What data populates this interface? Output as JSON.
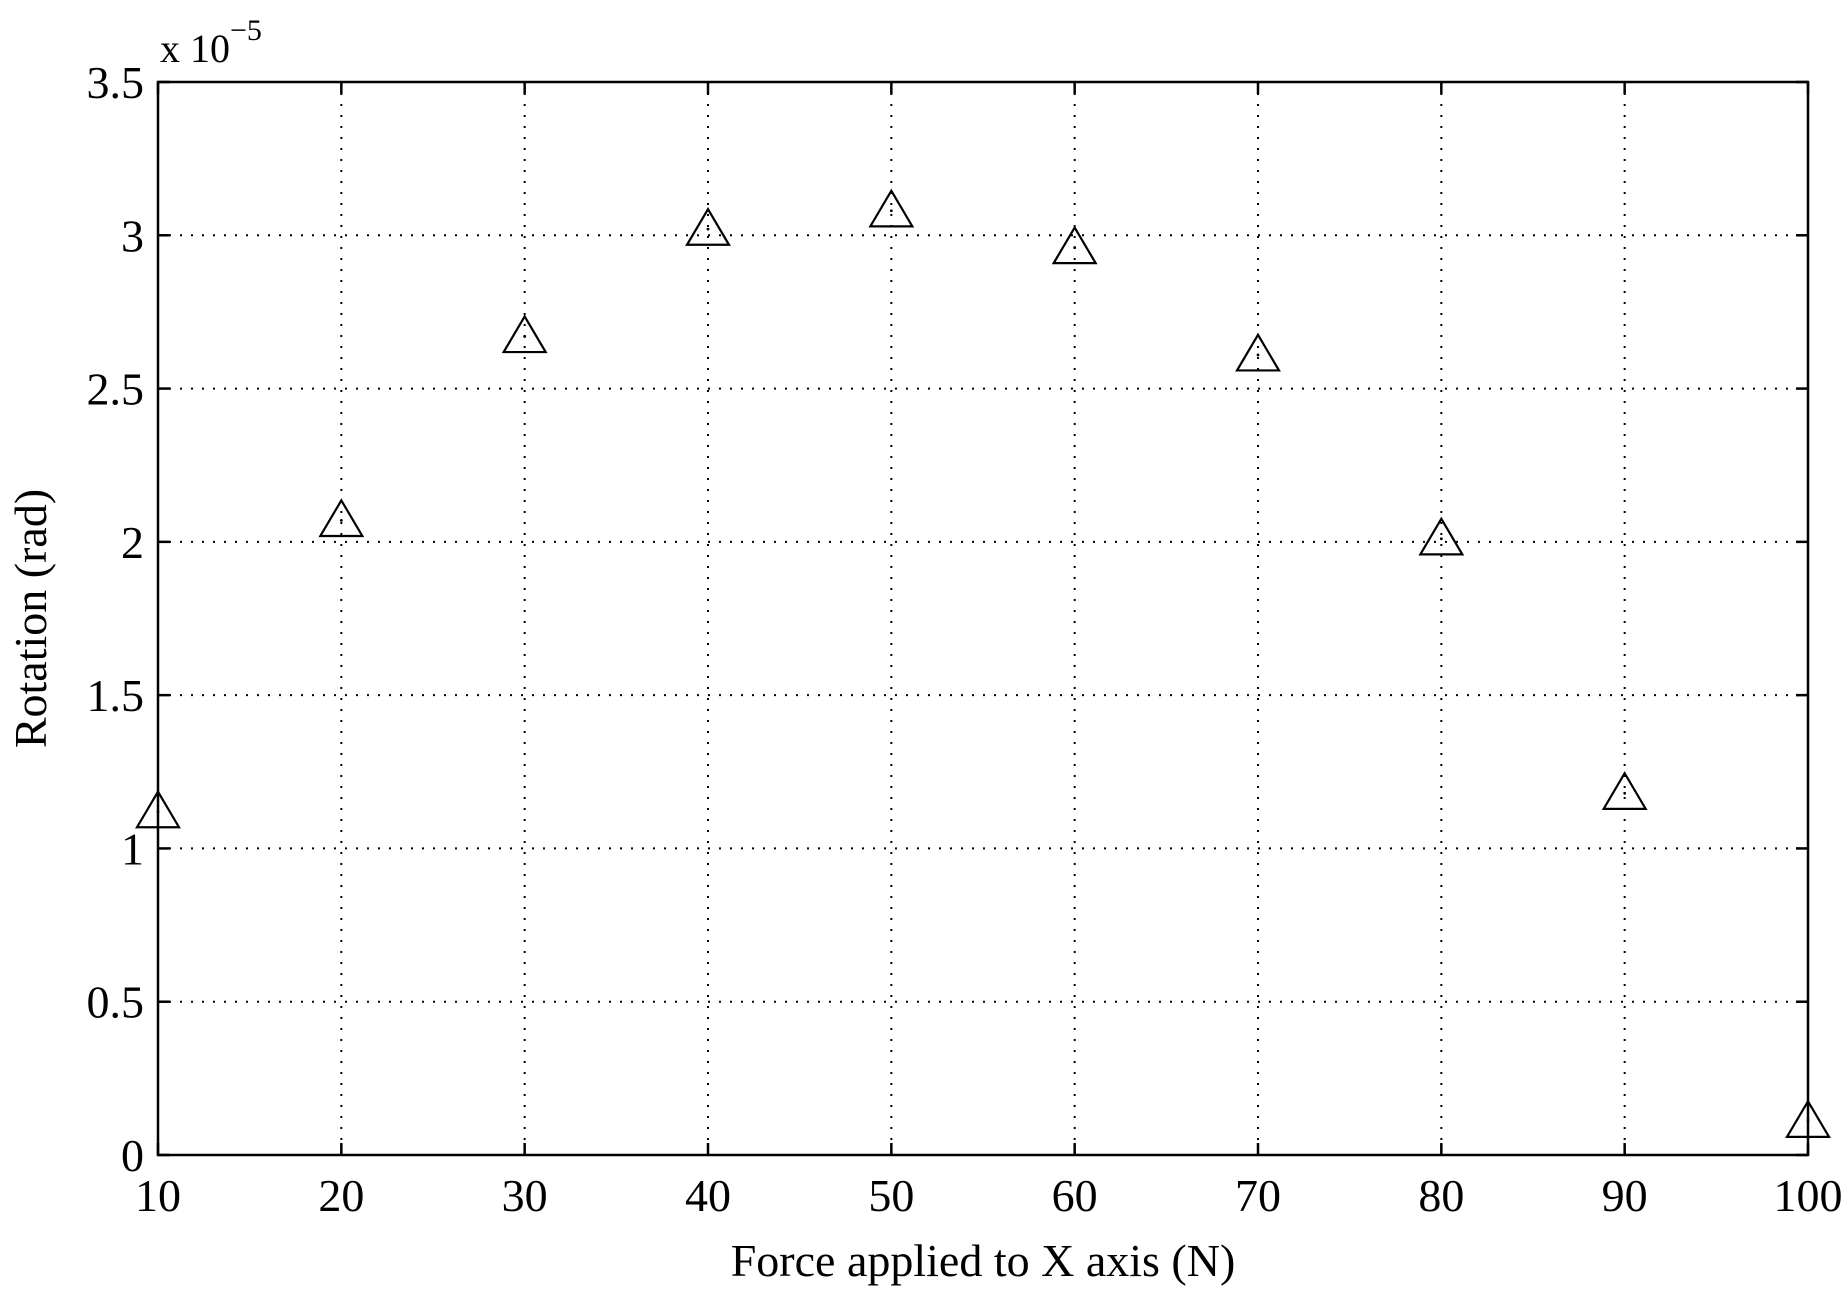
{
  "chart_data": {
    "type": "scatter",
    "title": "",
    "xlabel": "Force applied to X axis (N)",
    "ylabel": "Rotation (rad)",
    "y_multiplier": {
      "base": "x 10",
      "exponent": "−5"
    },
    "xlim": [
      10,
      100
    ],
    "ylim": [
      0,
      3.5
    ],
    "x_ticks": [
      "10",
      "20",
      "30",
      "40",
      "50",
      "60",
      "70",
      "80",
      "90",
      "100"
    ],
    "y_ticks": [
      "0",
      "0.5",
      "1",
      "1.5",
      "2",
      "2.5",
      "3",
      "3.5"
    ],
    "grid": true,
    "marker": "triangle",
    "series": [
      {
        "x": [
          10,
          20,
          30,
          40,
          50,
          60,
          70,
          80,
          90,
          100
        ],
        "y": [
          1.12,
          2.07,
          2.67,
          3.02,
          3.08,
          2.96,
          2.61,
          2.01,
          1.18,
          0.11
        ]
      }
    ]
  }
}
